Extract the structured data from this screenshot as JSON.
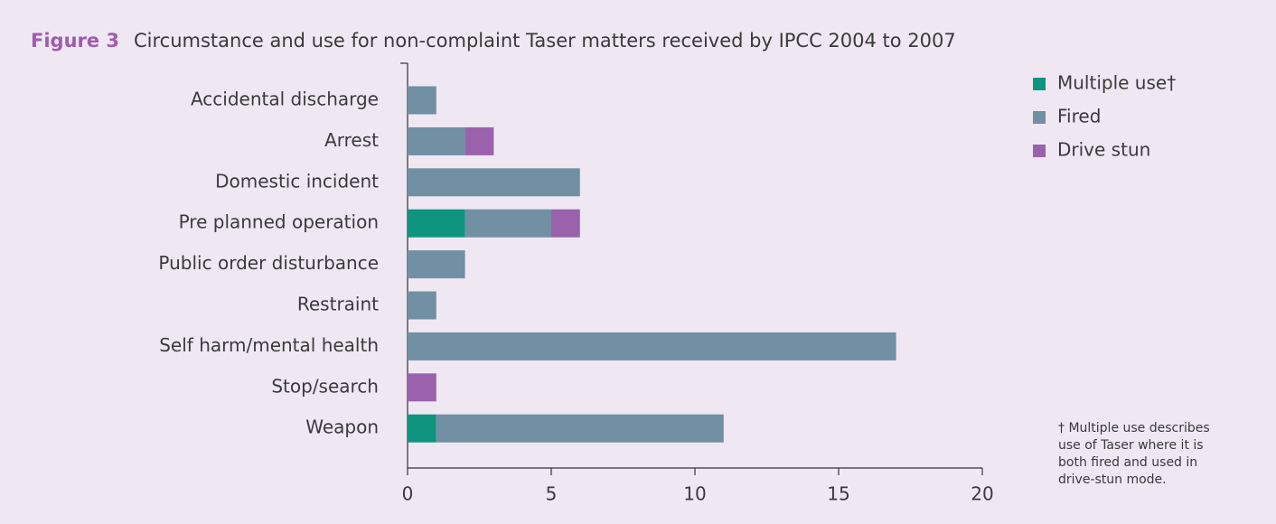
{
  "chart_data": {
    "type": "stacked-barh",
    "figure_label": "Figure 3",
    "title": "Circumstance and use for non-complaint Taser matters received by IPCC 2004 to 2007",
    "categories": [
      "Accidental discharge",
      "Arrest",
      "Domestic incident",
      "Pre planned operation",
      "Public order disturbance",
      "Restraint",
      "Self harm/mental health",
      "Stop/search",
      "Weapon"
    ],
    "series": [
      {
        "name": "Multiple use†",
        "color": "#0f9480",
        "values": [
          0,
          0,
          0,
          2,
          0,
          0,
          0,
          0,
          1
        ]
      },
      {
        "name": "Fired",
        "color": "#7190a4",
        "values": [
          1,
          2,
          6,
          3,
          2,
          1,
          17,
          0,
          10
        ]
      },
      {
        "name": "Drive stun",
        "color": "#9a62ad",
        "values": [
          0,
          1,
          0,
          1,
          0,
          0,
          0,
          1,
          0
        ]
      }
    ],
    "xlim": [
      0,
      20
    ],
    "xticks": [
      0,
      5,
      10,
      15,
      20
    ],
    "legend": "top-right",
    "footnote": [
      "† Multiple use describes",
      "use of Taser where it is",
      "both fired and used in",
      "drive-stun mode."
    ]
  }
}
